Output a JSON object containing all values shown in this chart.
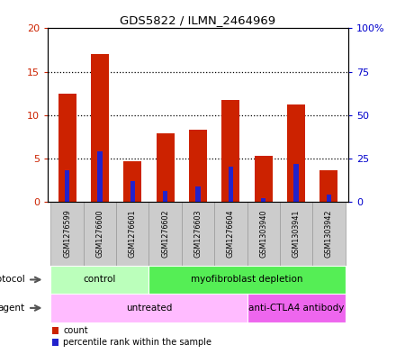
{
  "title": "GDS5822 / ILMN_2464969",
  "samples": [
    "GSM1276599",
    "GSM1276600",
    "GSM1276601",
    "GSM1276602",
    "GSM1276603",
    "GSM1276604",
    "GSM1303940",
    "GSM1303941",
    "GSM1303942"
  ],
  "counts": [
    12.5,
    17.0,
    4.7,
    7.9,
    8.3,
    11.7,
    5.3,
    11.2,
    3.6
  ],
  "percentile_ranks": [
    18,
    29,
    12,
    6,
    9,
    20,
    2,
    22,
    4
  ],
  "ylim_left": [
    0,
    20
  ],
  "ylim_right": [
    0,
    100
  ],
  "yticks_left": [
    0,
    5,
    10,
    15,
    20
  ],
  "ytick_labels_left": [
    "0",
    "5",
    "10",
    "15",
    "20"
  ],
  "yticks_right": [
    0,
    25,
    50,
    75,
    100
  ],
  "ytick_labels_right": [
    "0",
    "25",
    "50",
    "75",
    "100%"
  ],
  "bar_color": "#cc2200",
  "percentile_color": "#2222cc",
  "bar_width": 0.55,
  "protocol_labels": [
    "control",
    "myofibroblast depletion"
  ],
  "protocol_ranges": [
    [
      0,
      3
    ],
    [
      3,
      9
    ]
  ],
  "protocol_colors": [
    "#bbffbb",
    "#55ee55"
  ],
  "agent_labels": [
    "untreated",
    "anti-CTLA4 antibody"
  ],
  "agent_ranges": [
    [
      0,
      6
    ],
    [
      6,
      9
    ]
  ],
  "agent_colors": [
    "#ffbbff",
    "#ee66ee"
  ],
  "legend_count_label": "count",
  "legend_percentile_label": "percentile rank within the sample",
  "ylabel_left_color": "#cc2200",
  "ylabel_right_color": "#0000cc",
  "grid_dotted_ticks": [
    5,
    10,
    15
  ],
  "sample_box_color": "#cccccc",
  "sample_box_edge": "#999999"
}
